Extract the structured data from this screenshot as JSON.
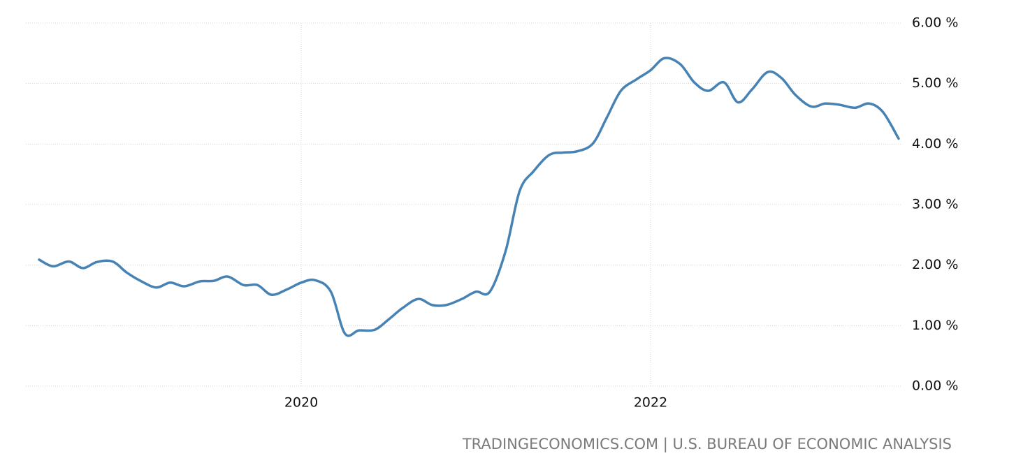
{
  "chart_data": {
    "type": "line",
    "source": "TRADINGECONOMICS.COM | U.S. BUREAU OF ECONOMIC ANALYSIS",
    "x": [
      2018.5,
      2018.58,
      2018.67,
      2018.75,
      2018.83,
      2018.92,
      2019.0,
      2019.08,
      2019.17,
      2019.25,
      2019.33,
      2019.42,
      2019.5,
      2019.58,
      2019.67,
      2019.75,
      2019.83,
      2019.92,
      2020.0,
      2020.08,
      2020.17,
      2020.25,
      2020.33,
      2020.42,
      2020.5,
      2020.58,
      2020.67,
      2020.75,
      2020.83,
      2020.92,
      2021.0,
      2021.08,
      2021.17,
      2021.25,
      2021.33,
      2021.42,
      2021.5,
      2021.58,
      2021.67,
      2021.75,
      2021.83,
      2021.92,
      2022.0,
      2022.08,
      2022.17,
      2022.25,
      2022.33,
      2022.42,
      2022.5,
      2022.58,
      2022.67,
      2022.75,
      2022.83,
      2022.92,
      2023.0,
      2023.08,
      2023.17,
      2023.25,
      2023.33,
      2023.42
    ],
    "series": [
      {
        "color": "#4682b4",
        "values": [
          2.09,
          1.98,
          2.06,
          1.95,
          2.05,
          2.06,
          1.88,
          1.74,
          1.63,
          1.71,
          1.65,
          1.73,
          1.74,
          1.81,
          1.67,
          1.67,
          1.51,
          1.6,
          1.71,
          1.75,
          1.56,
          0.87,
          0.92,
          0.93,
          1.1,
          1.29,
          1.44,
          1.34,
          1.34,
          1.44,
          1.56,
          1.56,
          2.23,
          3.22,
          3.55,
          3.82,
          3.86,
          3.88,
          4.01,
          4.44,
          4.88,
          5.07,
          5.22,
          5.42,
          5.32,
          5.02,
          4.88,
          5.02,
          4.69,
          4.9,
          5.19,
          5.09,
          4.81,
          4.62,
          4.67,
          4.65,
          4.6,
          4.67,
          4.53,
          4.09
        ]
      }
    ],
    "xlim": [
      2018.424,
      2023.436
    ],
    "xticks": [
      2020,
      2022
    ],
    "ylim": [
      0,
      6
    ],
    "yticks": [
      {
        "value": 0,
        "label": "0.00 %"
      },
      {
        "value": 1,
        "label": "1.00 %"
      },
      {
        "value": 2,
        "label": "2.00 %"
      },
      {
        "value": 3,
        "label": "3.00 %"
      },
      {
        "value": 4,
        "label": "4.00 %"
      },
      {
        "value": 5,
        "label": "5.00 %"
      },
      {
        "value": 6,
        "label": "6.00 %"
      }
    ],
    "grid": true
  }
}
